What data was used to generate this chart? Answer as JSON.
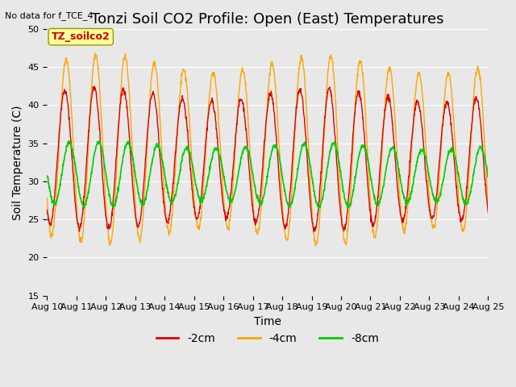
{
  "title": "Tonzi Soil CO2 Profile: Open (East) Temperatures",
  "top_left_text": "No data for f_TCE_4",
  "xlabel": "Time",
  "ylabel": "Soil Temperature (C)",
  "ylim": [
    15,
    50
  ],
  "yticks": [
    15,
    20,
    25,
    30,
    35,
    40,
    45,
    50
  ],
  "xlim_days": [
    0,
    15
  ],
  "x_tick_labels": [
    "Aug 10",
    "Aug 11",
    "Aug 12",
    "Aug 13",
    "Aug 14",
    "Aug 15",
    "Aug 16",
    "Aug 17",
    "Aug 18",
    "Aug 19",
    "Aug 20",
    "Aug 21",
    "Aug 22",
    "Aug 23",
    "Aug 24",
    "Aug 25"
  ],
  "color_2cm": "#dd0000",
  "color_4cm": "#ffa500",
  "color_8cm": "#00cc00",
  "legend_label_2cm": "-2cm",
  "legend_label_4cm": "-4cm",
  "legend_label_8cm": "-8cm",
  "bg_color": "#e8e8e8",
  "plot_bg_color": "#e8e8e8",
  "annotation_box_color": "#ffff99",
  "annotation_text_color": "#cc0000",
  "annotation_text": "TZ_soilco2",
  "title_fontsize": 13,
  "axis_label_fontsize": 10,
  "tick_fontsize": 8,
  "legend_fontsize": 10,
  "series_2cm_base_min": 24.5,
  "series_2cm_base_max": 41.5,
  "series_4cm_base_min": 21.0,
  "series_4cm_base_max": 47.5,
  "series_8cm_base_min": 26.5,
  "series_8cm_base_max": 35.5,
  "n_points": 1500,
  "days": 15,
  "amplitude_decay_4cm": 0.85,
  "phase_shift_4cm": 0.05,
  "phase_shift_8cm": 0.15
}
